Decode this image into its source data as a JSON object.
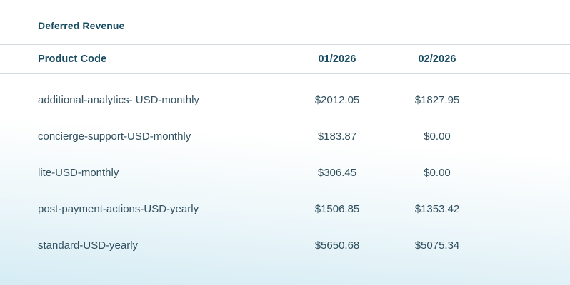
{
  "page": {
    "title": "Deferred Revenue"
  },
  "table": {
    "columns": [
      {
        "label": "Product Code",
        "align": "left"
      },
      {
        "label": "01/2026",
        "align": "center"
      },
      {
        "label": "02/2026",
        "align": "center"
      }
    ],
    "rows": [
      {
        "product_code": "additional-analytics- USD-monthly",
        "amounts": [
          "$2012.05",
          "$1827.95"
        ]
      },
      {
        "product_code": "concierge-support-USD-monthly",
        "amounts": [
          "$183.87",
          "$0.00"
        ]
      },
      {
        "product_code": "lite-USD-monthly",
        "amounts": [
          "$306.45",
          "$0.00"
        ]
      },
      {
        "product_code": "post-payment-actions-USD-yearly",
        "amounts": [
          "$1506.85",
          "$1353.42"
        ]
      },
      {
        "product_code": "standard-USD-yearly",
        "amounts": [
          "$5650.68",
          "$5075.34"
        ]
      }
    ]
  },
  "colors": {
    "heading_text": "#174b61",
    "body_text": "#31505f",
    "divider": "#d4dade",
    "background_top": "#ffffff",
    "background_bottom": "#d5ecf4"
  }
}
